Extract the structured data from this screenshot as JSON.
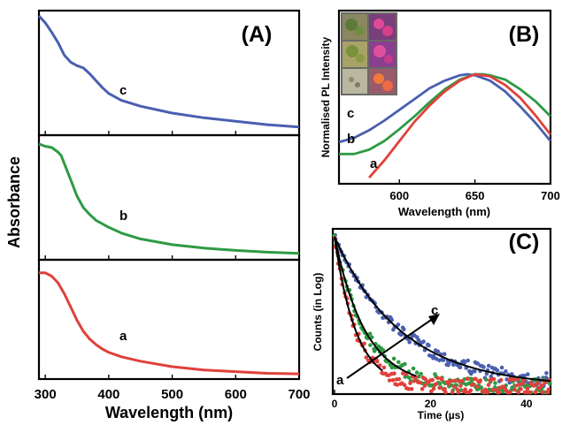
{
  "chart_data": [
    {
      "panel": "(A)",
      "type": "line",
      "xlabel": "Wavelength (nm)",
      "ylabel": "Absorbance",
      "xlim": [
        290,
        700
      ],
      "x_ticks": [
        "300",
        "400",
        "500",
        "600",
        "700"
      ],
      "y_ticks": [],
      "grid": false,
      "subplots": [
        {
          "curve_label": "c",
          "color": "#4a5fb0",
          "points": [
            [
              290,
              1.0
            ],
            [
              300,
              0.94
            ],
            [
              310,
              0.86
            ],
            [
              320,
              0.77
            ],
            [
              330,
              0.66
            ],
            [
              340,
              0.6
            ],
            [
              350,
              0.57
            ],
            [
              360,
              0.55
            ],
            [
              370,
              0.5
            ],
            [
              380,
              0.44
            ],
            [
              390,
              0.38
            ],
            [
              400,
              0.33
            ],
            [
              420,
              0.27
            ],
            [
              450,
              0.22
            ],
            [
              500,
              0.16
            ],
            [
              550,
              0.12
            ],
            [
              600,
              0.09
            ],
            [
              650,
              0.06
            ],
            [
              700,
              0.04
            ]
          ]
        },
        {
          "curve_label": "b",
          "color": "#2e9a44",
          "points": [
            [
              290,
              0.97
            ],
            [
              300,
              0.95
            ],
            [
              310,
              0.94
            ],
            [
              320,
              0.9
            ],
            [
              325,
              0.87
            ],
            [
              330,
              0.8
            ],
            [
              340,
              0.66
            ],
            [
              350,
              0.52
            ],
            [
              360,
              0.42
            ],
            [
              370,
              0.36
            ],
            [
              380,
              0.31
            ],
            [
              400,
              0.25
            ],
            [
              420,
              0.2
            ],
            [
              450,
              0.15
            ],
            [
              500,
              0.1
            ],
            [
              550,
              0.07
            ],
            [
              600,
              0.05
            ],
            [
              650,
              0.035
            ],
            [
              700,
              0.025
            ]
          ]
        },
        {
          "curve_label": "a",
          "color": "#e0413b",
          "points": [
            [
              290,
              0.93
            ],
            [
              300,
              0.93
            ],
            [
              310,
              0.9
            ],
            [
              320,
              0.84
            ],
            [
              330,
              0.74
            ],
            [
              340,
              0.62
            ],
            [
              350,
              0.5
            ],
            [
              360,
              0.4
            ],
            [
              370,
              0.33
            ],
            [
              380,
              0.28
            ],
            [
              390,
              0.24
            ],
            [
              400,
              0.21
            ],
            [
              420,
              0.17
            ],
            [
              450,
              0.13
            ],
            [
              500,
              0.08
            ],
            [
              550,
              0.05
            ],
            [
              600,
              0.035
            ],
            [
              650,
              0.02
            ],
            [
              700,
              0.015
            ]
          ]
        }
      ]
    },
    {
      "panel": "(B)",
      "type": "line",
      "xlabel": "Wavelength (nm)",
      "ylabel": "Normalised PL Intensity",
      "xlim": [
        560,
        700
      ],
      "x_ticks": [
        "600",
        "650",
        "700"
      ],
      "y_ticks": [],
      "grid": false,
      "inset": "photographs of samples",
      "series": [
        {
          "curve_label": "c",
          "color": "#4a5fb0",
          "points": [
            [
              560,
              0.37
            ],
            [
              570,
              0.41
            ],
            [
              580,
              0.48
            ],
            [
              590,
              0.57
            ],
            [
              600,
              0.67
            ],
            [
              610,
              0.77
            ],
            [
              620,
              0.87
            ],
            [
              630,
              0.94
            ],
            [
              640,
              0.99
            ],
            [
              645,
              1.0
            ],
            [
              650,
              0.99
            ],
            [
              660,
              0.94
            ],
            [
              670,
              0.84
            ],
            [
              680,
              0.7
            ],
            [
              690,
              0.55
            ],
            [
              700,
              0.38
            ]
          ]
        },
        {
          "curve_label": "b",
          "color": "#2e9a44",
          "points": [
            [
              560,
              0.26
            ],
            [
              570,
              0.26
            ],
            [
              580,
              0.3
            ],
            [
              590,
              0.38
            ],
            [
              600,
              0.49
            ],
            [
              610,
              0.61
            ],
            [
              620,
              0.74
            ],
            [
              630,
              0.86
            ],
            [
              640,
              0.95
            ],
            [
              650,
              1.0
            ],
            [
              655,
              1.0
            ],
            [
              660,
              0.99
            ],
            [
              670,
              0.95
            ],
            [
              680,
              0.86
            ],
            [
              690,
              0.75
            ],
            [
              700,
              0.61
            ]
          ]
        },
        {
          "curve_label": "a",
          "color": "#e0413b",
          "points": [
            [
              580,
              0.04
            ],
            [
              590,
              0.2
            ],
            [
              600,
              0.38
            ],
            [
              610,
              0.56
            ],
            [
              620,
              0.71
            ],
            [
              630,
              0.84
            ],
            [
              640,
              0.94
            ],
            [
              650,
              1.0
            ],
            [
              660,
              0.98
            ],
            [
              670,
              0.9
            ],
            [
              680,
              0.78
            ],
            [
              690,
              0.62
            ],
            [
              700,
              0.44
            ]
          ]
        }
      ]
    },
    {
      "panel": "(C)",
      "type": "scatter",
      "xlabel": "Time (µs)",
      "ylabel": "Counts (in Log)",
      "xlim": [
        0,
        45
      ],
      "x_ticks": [
        "0",
        "20",
        "40"
      ],
      "y_ticks": [],
      "grid": false,
      "series": [
        {
          "curve_label": "a",
          "color": "#e0413b",
          "fit_color": "#000000",
          "decay_const_us": 4.5,
          "end_us": 10
        },
        {
          "curve_label": "b",
          "color": "#2e9a44",
          "fit_color": "#000000",
          "decay_const_us": 6.5,
          "end_us": 17
        },
        {
          "curve_label": "c",
          "color": "#4a5fb0",
          "fit_color": "#000000",
          "decay_const_us": 14.0,
          "end_us": 45
        }
      ],
      "annotations": [
        "a",
        "c"
      ]
    }
  ]
}
